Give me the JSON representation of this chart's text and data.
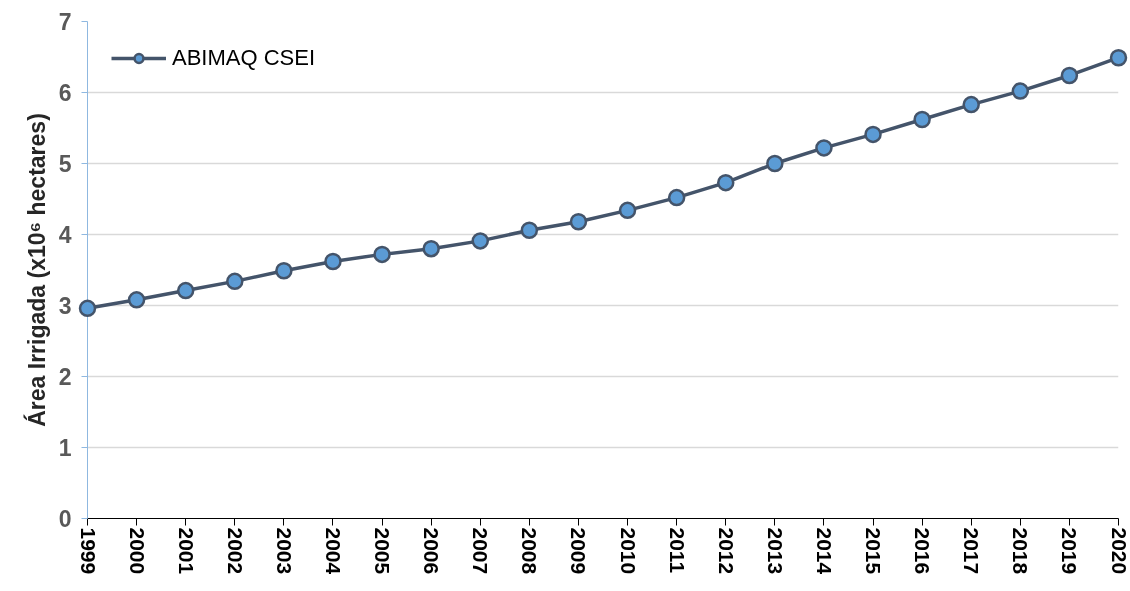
{
  "chart_data": {
    "type": "line",
    "ylabel": "Área Irrigada (x10⁶ hectares)",
    "x": [
      1999,
      2000,
      2001,
      2002,
      2003,
      2004,
      2005,
      2006,
      2007,
      2008,
      2009,
      2010,
      2011,
      2012,
      2013,
      2014,
      2015,
      2016,
      2017,
      2018,
      2019,
      2020
    ],
    "series": [
      {
        "name": "ABIMAQ CSEI",
        "color": "#44546a",
        "colors": [
          "#5b9bd5",
          "#5b9bd5",
          "#5b9bd5",
          "#5b9bd5",
          "#5b9bd5",
          "#5b9bd5",
          "#5b9bd5",
          "#5b9bd5",
          "#5b9bd5",
          "#5b9bd5",
          "#5b9bd5",
          "#5b9bd5",
          "#5b9bd5",
          "#5b9bd5",
          "#5b9bd5",
          "#5b9bd5",
          "#5b9bd5",
          "#5b9bd5",
          "#5b9bd5",
          "#5b9bd5",
          "#5b9bd5",
          "#5b9bd5"
        ],
        "values": [
          2.96,
          3.08,
          3.21,
          3.34,
          3.49,
          3.62,
          3.72,
          3.8,
          3.91,
          4.06,
          4.18,
          4.34,
          4.52,
          4.73,
          5.0,
          5.22,
          5.41,
          5.62,
          5.83,
          6.02,
          6.24,
          6.49
        ]
      }
    ],
    "xlim": [
      1999,
      2020
    ],
    "xticks": [
      1999,
      2000,
      2001,
      2002,
      2003,
      2004,
      2005,
      2006,
      2007,
      2008,
      2009,
      2010,
      2011,
      2012,
      2013,
      2014,
      2015,
      2016,
      2017,
      2018,
      2019,
      2020
    ],
    "ylim": [
      0,
      7
    ],
    "yticks": [
      0,
      1,
      2,
      3,
      4,
      5,
      6,
      7
    ],
    "grid": "y",
    "legend": "top left",
    "marker": "circle",
    "line_style": "solid"
  }
}
